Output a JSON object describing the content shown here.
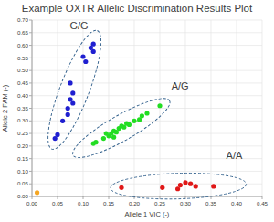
{
  "chart_data": {
    "type": "scatter",
    "title": "Example OXTR Allelic Discrimination Results Plot",
    "x_label": "Allele 1 VIC (-)",
    "y_label": "Allele 2 FAM (-)",
    "xlim": [
      0,
      0.45
    ],
    "ylim": [
      0,
      0.7
    ],
    "xticks": [
      {
        "value": 0,
        "label": "0.00"
      },
      {
        "value": 0.05,
        "label": "0.05"
      },
      {
        "value": 0.1,
        "label": "0.10"
      },
      {
        "value": 0.15,
        "label": "0.15"
      },
      {
        "value": 0.2,
        "label": "0.20"
      },
      {
        "value": 0.25,
        "label": "0.25"
      },
      {
        "value": 0.3,
        "label": "0.30"
      },
      {
        "value": 0.35,
        "label": "0.35"
      },
      {
        "value": 0.4,
        "label": "0.40"
      },
      {
        "value": 0.45,
        "label": "0.45"
      }
    ],
    "yticks": [
      {
        "value": 0,
        "label": "0.00"
      },
      {
        "value": 0.05,
        "label": "0.05"
      },
      {
        "value": 0.1,
        "label": "0.10"
      },
      {
        "value": 0.15,
        "label": "0.15"
      },
      {
        "value": 0.2,
        "label": "0.20"
      },
      {
        "value": 0.25,
        "label": "0.25"
      },
      {
        "value": 0.3,
        "label": "0.30"
      },
      {
        "value": 0.35,
        "label": "0.35"
      },
      {
        "value": 0.4,
        "label": "0.40"
      },
      {
        "value": 0.45,
        "label": "0.45"
      },
      {
        "value": 0.5,
        "label": "0.50"
      },
      {
        "value": 0.55,
        "label": "0.55"
      },
      {
        "value": 0.6,
        "label": "0.60"
      },
      {
        "value": 0.65,
        "label": "0.65"
      },
      {
        "value": 0.7,
        "label": "0.70"
      }
    ],
    "grid": true,
    "marker": "circle",
    "series": [
      {
        "name": "G/G",
        "color": "#1f1fd0",
        "x": [
          0.12,
          0.115,
          0.12,
          0.1,
          0.105,
          0.075,
          0.08,
          0.075,
          0.08,
          0.07,
          0.07,
          0.06,
          0.05,
          0.045
        ],
        "values": [
          0.605,
          0.59,
          0.575,
          0.555,
          0.535,
          0.45,
          0.41,
          0.385,
          0.37,
          0.35,
          0.325,
          0.3,
          0.245,
          0.23
        ]
      },
      {
        "name": "A/G",
        "color": "#22dd22",
        "x": [
          0.12,
          0.125,
          0.14,
          0.145,
          0.15,
          0.155,
          0.16,
          0.16,
          0.165,
          0.17,
          0.175,
          0.18,
          0.185,
          0.19,
          0.2,
          0.21,
          0.215,
          0.225,
          0.25
        ],
        "values": [
          0.21,
          0.215,
          0.23,
          0.25,
          0.24,
          0.25,
          0.26,
          0.235,
          0.255,
          0.27,
          0.28,
          0.275,
          0.29,
          0.285,
          0.3,
          0.305,
          0.32,
          0.33,
          0.36
        ]
      },
      {
        "name": "A/A",
        "color": "#e01818",
        "x": [
          0.175,
          0.255,
          0.285,
          0.29,
          0.3,
          0.31,
          0.32,
          0.355
        ],
        "values": [
          0.035,
          0.035,
          0.03,
          0.045,
          0.055,
          0.05,
          0.04,
          0.04
        ]
      },
      {
        "color": "#f5a623",
        "x": [
          0.01
        ],
        "values": [
          0.015
        ]
      }
    ]
  }
}
